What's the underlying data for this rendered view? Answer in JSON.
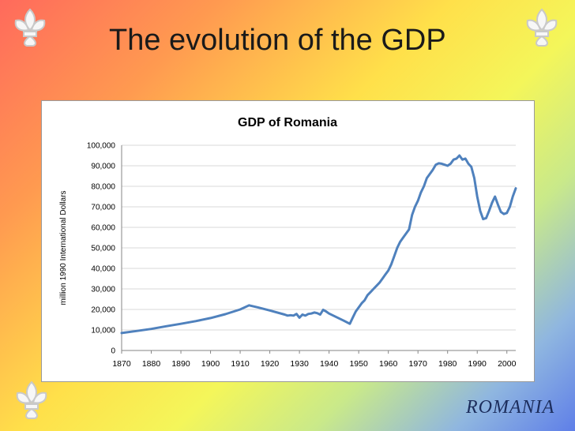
{
  "slide": {
    "title": "The evolution of the GDP",
    "footer": "ROMANIA"
  },
  "ornaments": [
    "fleur-de-lis-icon",
    "fleur-de-lis-icon",
    "fleur-de-lis-icon"
  ],
  "colors": {
    "line": "#4f81bd",
    "gridline": "#d9d9d9",
    "footer_text": "#1c2d5c"
  },
  "chart_data": {
    "type": "line",
    "title": "GDP of Romania",
    "xlabel": "",
    "ylabel": "million 1990 International Dollars",
    "xlim": [
      1870,
      2003
    ],
    "ylim": [
      0,
      100000
    ],
    "xticks": [
      1870,
      1880,
      1890,
      1900,
      1910,
      1920,
      1930,
      1940,
      1950,
      1960,
      1970,
      1980,
      1990,
      2000
    ],
    "yticks": [
      0,
      10000,
      20000,
      30000,
      40000,
      50000,
      60000,
      70000,
      80000,
      90000,
      100000
    ],
    "ytick_labels": [
      "0",
      "10,000",
      "20,000",
      "30,000",
      "40,000",
      "50,000",
      "60,000",
      "70,000",
      "80,000",
      "90,000",
      "100,000"
    ],
    "grid": true,
    "legend": "none",
    "series": [
      {
        "x": [
          1870,
          1875,
          1880,
          1885,
          1890,
          1895,
          1900,
          1905,
          1910,
          1913,
          1916,
          1920,
          1925,
          1926,
          1927,
          1928,
          1929,
          1930,
          1931,
          1932,
          1933,
          1934,
          1935,
          1936,
          1937,
          1938,
          1939,
          1940,
          1945,
          1947,
          1948,
          1949,
          1950,
          1951,
          1952,
          1953,
          1954,
          1955,
          1956,
          1957,
          1958,
          1959,
          1960,
          1961,
          1962,
          1963,
          1964,
          1965,
          1966,
          1967,
          1968,
          1969,
          1970,
          1971,
          1972,
          1973,
          1974,
          1975,
          1976,
          1977,
          1978,
          1979,
          1980,
          1981,
          1982,
          1983,
          1984,
          1985,
          1986,
          1987,
          1988,
          1989,
          1990,
          1991,
          1992,
          1993,
          1994,
          1995,
          1996,
          1997,
          1998,
          1999,
          2000,
          2001,
          2002,
          2003
        ],
        "y": [
          8500,
          9500,
          10500,
          11800,
          13000,
          14300,
          15800,
          17700,
          20000,
          22000,
          21000,
          19500,
          17500,
          17000,
          17200,
          17000,
          17800,
          16000,
          17500,
          17000,
          17800,
          18000,
          18500,
          18200,
          17500,
          19800,
          19000,
          18000,
          14500,
          13000,
          16000,
          19000,
          21000,
          23000,
          24500,
          27000,
          28500,
          30000,
          31500,
          33000,
          35000,
          37000,
          39000,
          42000,
          46000,
          50000,
          53000,
          55000,
          57000,
          59000,
          66000,
          70000,
          73000,
          77000,
          80000,
          84000,
          86000,
          88000,
          90500,
          91200,
          91000,
          90500,
          90000,
          91000,
          93000,
          93500,
          95000,
          93000,
          93500,
          91000,
          89500,
          84000,
          75000,
          68000,
          64000,
          64500,
          68000,
          72000,
          75000,
          71000,
          67500,
          66500,
          67000,
          70000,
          75000,
          79000
        ]
      }
    ]
  }
}
